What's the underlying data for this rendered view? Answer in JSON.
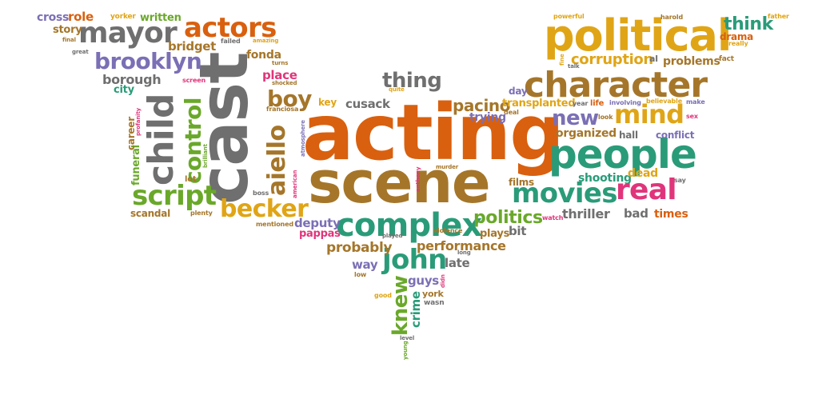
{
  "colors": {
    "orange": "#d9600f",
    "gray": "#6f6f6f",
    "gold": "#e0a516",
    "brown": "#a5762a",
    "teal": "#2a9b78",
    "green": "#6aa82a",
    "purple": "#7b6fb5",
    "blue": "#5a63b0",
    "pink": "#e0357a",
    "dark": "#4b4b4b"
  },
  "words": [
    {
      "text": "acting",
      "color": "orange"
    },
    {
      "text": "cast",
      "color": "gray"
    },
    {
      "text": "scene",
      "color": "brown"
    },
    {
      "text": "political",
      "color": "gold"
    },
    {
      "text": "character",
      "color": "brown"
    },
    {
      "text": "people",
      "color": "teal"
    },
    {
      "text": "complex",
      "color": "teal"
    },
    {
      "text": "mayor",
      "color": "gray"
    },
    {
      "text": "actors",
      "color": "orange"
    },
    {
      "text": "brooklyn",
      "color": "purple"
    },
    {
      "text": "child",
      "color": "gray"
    },
    {
      "text": "script",
      "color": "green"
    },
    {
      "text": "becker",
      "color": "gold"
    },
    {
      "text": "movies",
      "color": "teal"
    },
    {
      "text": "real",
      "color": "pink"
    },
    {
      "text": "mind",
      "color": "gold"
    },
    {
      "text": "john",
      "color": "teal"
    },
    {
      "text": "aiello",
      "color": "brown"
    },
    {
      "text": "control",
      "color": "green"
    },
    {
      "text": "boy",
      "color": "brown"
    },
    {
      "text": "thing",
      "color": "gray"
    },
    {
      "text": "new",
      "color": "purple"
    },
    {
      "text": "pacino",
      "color": "brown"
    },
    {
      "text": "think",
      "color": "teal"
    },
    {
      "text": "corruption",
      "color": "gold"
    },
    {
      "text": "politics",
      "color": "green"
    },
    {
      "text": "knew",
      "color": "green"
    },
    {
      "text": "performance",
      "color": "brown"
    },
    {
      "text": "probably",
      "color": "brown"
    },
    {
      "text": "thriller",
      "color": "gray"
    },
    {
      "text": "cross",
      "color": "purple"
    },
    {
      "text": "role",
      "color": "orange"
    },
    {
      "text": "yorker",
      "color": "gold"
    },
    {
      "text": "written",
      "color": "green"
    },
    {
      "text": "story",
      "color": "brown"
    },
    {
      "text": "bridget",
      "color": "brown"
    },
    {
      "text": "fonda",
      "color": "brown"
    },
    {
      "text": "borough",
      "color": "gray"
    },
    {
      "text": "place",
      "color": "pink"
    },
    {
      "text": "city",
      "color": "teal"
    },
    {
      "text": "crime",
      "color": "teal"
    },
    {
      "text": "guys",
      "color": "purple"
    },
    {
      "text": "late",
      "color": "gray"
    },
    {
      "text": "deputy",
      "color": "purple"
    },
    {
      "text": "pappas",
      "color": "pink"
    },
    {
      "text": "bit",
      "color": "gray"
    },
    {
      "text": "plays",
      "color": "brown"
    },
    {
      "text": "bad",
      "color": "gray"
    },
    {
      "text": "times",
      "color": "orange"
    },
    {
      "text": "way",
      "color": "purple"
    },
    {
      "text": "cusack",
      "color": "gray"
    },
    {
      "text": "key",
      "color": "gold"
    },
    {
      "text": "trying",
      "color": "purple"
    },
    {
      "text": "transplanted",
      "color": "gold"
    },
    {
      "text": "organized",
      "color": "brown"
    },
    {
      "text": "shooting",
      "color": "teal"
    },
    {
      "text": "dead",
      "color": "gold"
    },
    {
      "text": "films",
      "color": "brown"
    },
    {
      "text": "hall",
      "color": "gray"
    },
    {
      "text": "conflict",
      "color": "purple"
    },
    {
      "text": "problems",
      "color": "brown"
    },
    {
      "text": "drama",
      "color": "orange"
    },
    {
      "text": "day",
      "color": "purple"
    },
    {
      "text": "life",
      "color": "orange"
    },
    {
      "text": "involving",
      "color": "purple"
    },
    {
      "text": "believable",
      "color": "gold"
    },
    {
      "text": "make",
      "color": "purple"
    },
    {
      "text": "sex",
      "color": "pink"
    },
    {
      "text": "say",
      "color": "gray"
    },
    {
      "text": "fact",
      "color": "brown"
    },
    {
      "text": "really",
      "color": "gold"
    },
    {
      "text": "father",
      "color": "gold"
    },
    {
      "text": "harold",
      "color": "brown"
    },
    {
      "text": "powerful",
      "color": "gold"
    },
    {
      "text": "al",
      "color": "gray"
    },
    {
      "text": "talk",
      "color": "gray"
    },
    {
      "text": "fine",
      "color": "gold"
    },
    {
      "text": "year",
      "color": "gray"
    },
    {
      "text": "look",
      "color": "brown"
    },
    {
      "text": "deal",
      "color": "brown"
    },
    {
      "text": "quite",
      "color": "gold"
    },
    {
      "text": "funeral",
      "color": "green"
    },
    {
      "text": "career",
      "color": "brown"
    },
    {
      "text": "profanity",
      "color": "pink"
    },
    {
      "text": "lot",
      "color": "brown"
    },
    {
      "text": "brilliant",
      "color": "green"
    },
    {
      "text": "scandal",
      "color": "brown"
    },
    {
      "text": "plenty",
      "color": "brown"
    },
    {
      "text": "screen",
      "color": "pink"
    },
    {
      "text": "shocked",
      "color": "brown"
    },
    {
      "text": "turns",
      "color": "brown"
    },
    {
      "text": "failed",
      "color": "gray"
    },
    {
      "text": "amazing",
      "color": "gold"
    },
    {
      "text": "great",
      "color": "gray"
    },
    {
      "text": "final",
      "color": "brown"
    },
    {
      "text": "boss",
      "color": "gray"
    },
    {
      "text": "mentioned",
      "color": "brown"
    },
    {
      "text": "american",
      "color": "pink"
    },
    {
      "text": "atmosphere",
      "color": "purple"
    },
    {
      "text": "franciosa",
      "color": "brown"
    },
    {
      "text": "anthony",
      "color": "pink"
    },
    {
      "text": "murder",
      "color": "brown"
    },
    {
      "text": "violence",
      "color": "brown"
    },
    {
      "text": "played",
      "color": "gray"
    },
    {
      "text": "watch",
      "color": "pink"
    },
    {
      "text": "long",
      "color": "gray"
    },
    {
      "text": "low",
      "color": "brown"
    },
    {
      "text": "good",
      "color": "gold"
    },
    {
      "text": "york",
      "color": "brown"
    },
    {
      "text": "wasn",
      "color": "gray"
    },
    {
      "text": "didn",
      "color": "pink"
    },
    {
      "text": "level",
      "color": "gray"
    },
    {
      "text": "young",
      "color": "green"
    }
  ]
}
